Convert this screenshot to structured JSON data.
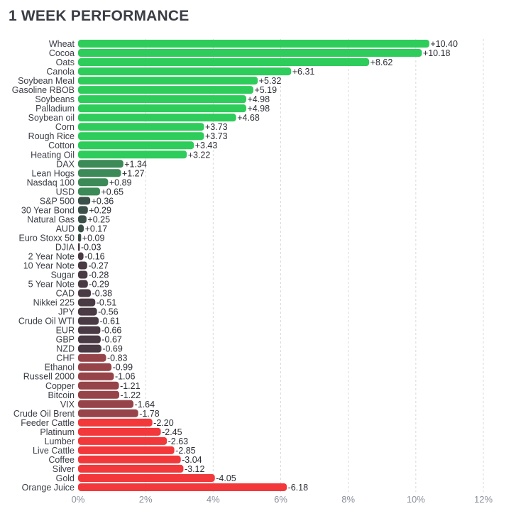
{
  "title": "1 WEEK PERFORMANCE",
  "chart_data": {
    "type": "bar",
    "orientation": "horizontal",
    "title": "1 WEEK PERFORMANCE",
    "xlabel": "",
    "ylabel": "",
    "xlim": [
      0,
      12
    ],
    "x_ticks": [
      "0%",
      "2%",
      "4%",
      "6%",
      "8%",
      "10%",
      "12%"
    ],
    "grid": true,
    "categories": [
      "Wheat",
      "Cocoa",
      "Oats",
      "Canola",
      "Soybean Meal",
      "Gasoline RBOB",
      "Soybeans",
      "Palladium",
      "Soybean oil",
      "Corn",
      "Rough Rice",
      "Cotton",
      "Heating Oil",
      "DAX",
      "Lean Hogs",
      "Nasdaq 100",
      "USD",
      "S&P 500",
      "30 Year Bond",
      "Natural Gas",
      "AUD",
      "Euro Stoxx 50",
      "DJIA",
      "2 Year Note",
      "10 Year Note",
      "Sugar",
      "5 Year Note",
      "CAD",
      "Nikkei 225",
      "JPY",
      "Crude Oil WTI",
      "EUR",
      "GBP",
      "NZD",
      "CHF",
      "Ethanol",
      "Russell 2000",
      "Copper",
      "Bitcoin",
      "VIX",
      "Crude Oil Brent",
      "Feeder Cattle",
      "Platinum",
      "Lumber",
      "Live Cattle",
      "Coffee",
      "Silver",
      "Gold",
      "Orange Juice"
    ],
    "values": [
      10.4,
      10.18,
      8.62,
      6.31,
      5.32,
      5.19,
      4.98,
      4.98,
      4.68,
      3.73,
      3.73,
      3.43,
      3.22,
      1.34,
      1.27,
      0.89,
      0.65,
      0.36,
      0.29,
      0.25,
      0.17,
      0.09,
      -0.03,
      -0.16,
      -0.27,
      -0.28,
      -0.29,
      -0.38,
      -0.51,
      -0.56,
      -0.61,
      -0.66,
      -0.67,
      -0.69,
      -0.83,
      -0.99,
      -1.06,
      -1.21,
      -1.22,
      -1.64,
      -1.78,
      -2.2,
      -2.45,
      -2.63,
      -2.85,
      -3.04,
      -3.12,
      -4.05,
      -6.18
    ],
    "value_labels": [
      "+10.40",
      "+10.18",
      "+8.62",
      "+6.31",
      "+5.32",
      "+5.19",
      "+4.98",
      "+4.98",
      "+4.68",
      "+3.73",
      "+3.73",
      "+3.43",
      "+3.22",
      "+1.34",
      "+1.27",
      "+0.89",
      "+0.65",
      "+0.36",
      "+0.29",
      "+0.25",
      "+0.17",
      "+0.09",
      "-0.03",
      "-0.16",
      "-0.27",
      "-0.28",
      "-0.29",
      "-0.38",
      "-0.51",
      "-0.56",
      "-0.61",
      "-0.66",
      "-0.67",
      "-0.69",
      "-0.83",
      "-0.99",
      "-1.06",
      "-1.21",
      "-1.22",
      "-1.64",
      "-1.78",
      "-2.20",
      "-2.45",
      "-2.63",
      "-2.85",
      "-3.04",
      "-3.12",
      "-4.05",
      "-6.18"
    ],
    "bar_length": "absolute value",
    "colors": {
      "strong_positive": "#2ecc5a",
      "mid_positive": "#3c8a57",
      "weak_positive": "#3a5048",
      "weak_negative": "#4a3a44",
      "mid_negative": "#964449",
      "strong_negative": "#f2383b",
      "grid": "#d9d9d9",
      "label": "#3a3d45",
      "tick": "#8a8f9a"
    }
  }
}
